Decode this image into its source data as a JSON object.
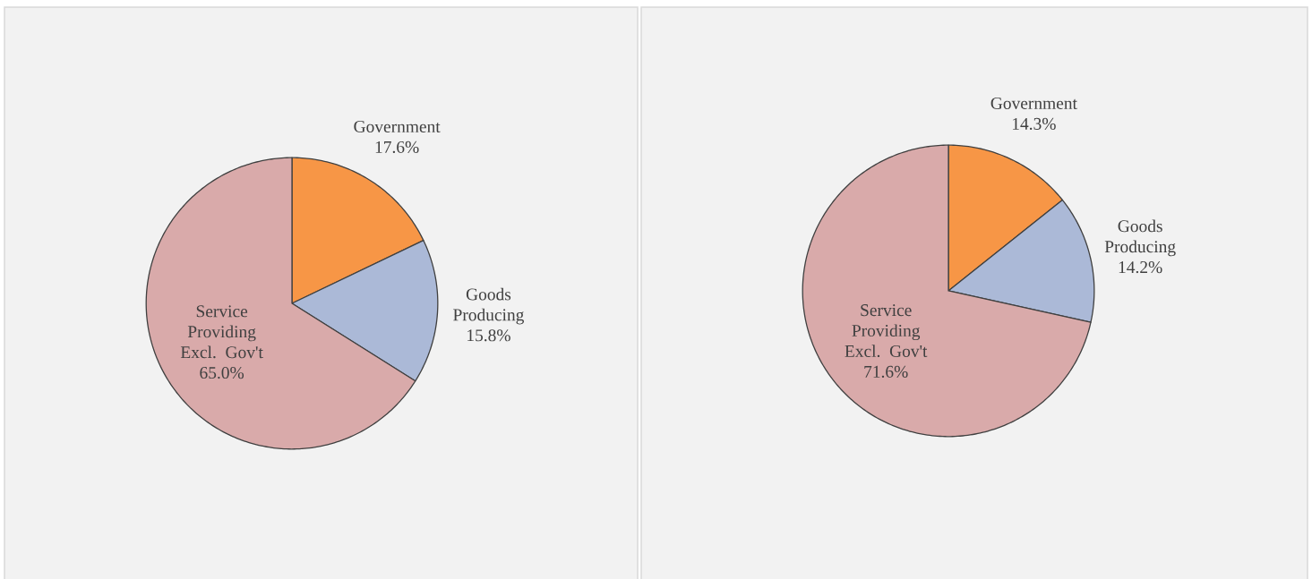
{
  "chart_data": [
    {
      "type": "pie",
      "categories": [
        "Government",
        "Goods Producing",
        "Service Providing Excl. Gov't"
      ],
      "values": [
        17.6,
        15.8,
        65.0
      ],
      "value_labels": [
        "17.6%",
        "15.8%",
        "65.0%"
      ],
      "colors": [
        "#f79646",
        "#abb9d7",
        "#d9aaaa"
      ]
    },
    {
      "type": "pie",
      "categories": [
        "Government",
        "Goods Producing",
        "Service Providing Excl. Gov't"
      ],
      "values": [
        14.3,
        14.2,
        71.6
      ],
      "value_labels": [
        "14.3%",
        "14.2%",
        "71.6%"
      ],
      "colors": [
        "#f79646",
        "#abb9d7",
        "#d9aaaa"
      ]
    }
  ]
}
